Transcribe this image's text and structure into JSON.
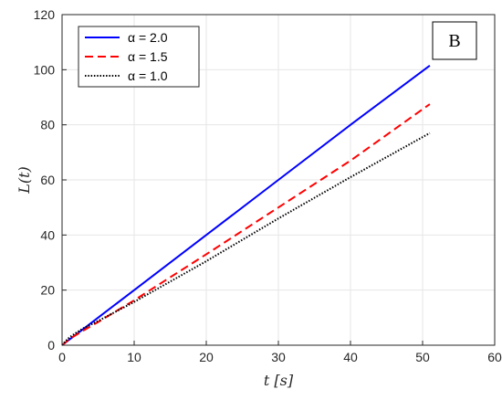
{
  "chart_data": {
    "type": "line",
    "xlabel": "t [s]",
    "ylabel": "L(t)",
    "xlim": [
      0,
      60
    ],
    "ylim": [
      0,
      120
    ],
    "xticks": [
      0,
      10,
      20,
      30,
      40,
      50,
      60
    ],
    "yticks": [
      0,
      20,
      40,
      60,
      80,
      100,
      120
    ],
    "grid": true,
    "legend_position": "top-left",
    "panel_label": "B",
    "series": [
      {
        "name": "α = 2.0",
        "style": "solid",
        "color": "#0000ff",
        "x": [
          0,
          1,
          2,
          3,
          5,
          10,
          20,
          30,
          40,
          51
        ],
        "y": [
          0,
          2,
          4,
          6,
          10,
          20,
          40,
          60,
          80,
          101.5
        ]
      },
      {
        "name": "α = 1.5",
        "style": "dashed",
        "color": "#ff0000",
        "x": [
          0,
          1,
          2,
          3,
          5,
          10,
          20,
          30,
          40,
          51
        ],
        "y": [
          0,
          2.2,
          3.8,
          5.4,
          8.4,
          16.3,
          33,
          50,
          67,
          87.5
        ]
      },
      {
        "name": "α = 1.0",
        "style": "dotted",
        "color": "#000000",
        "x": [
          0,
          0.5,
          1,
          2,
          3,
          5,
          10,
          20,
          30,
          40,
          51
        ],
        "y": [
          0,
          1.5,
          2.8,
          4.6,
          6.2,
          8.8,
          15.7,
          30.5,
          46,
          61,
          77
        ]
      }
    ]
  }
}
